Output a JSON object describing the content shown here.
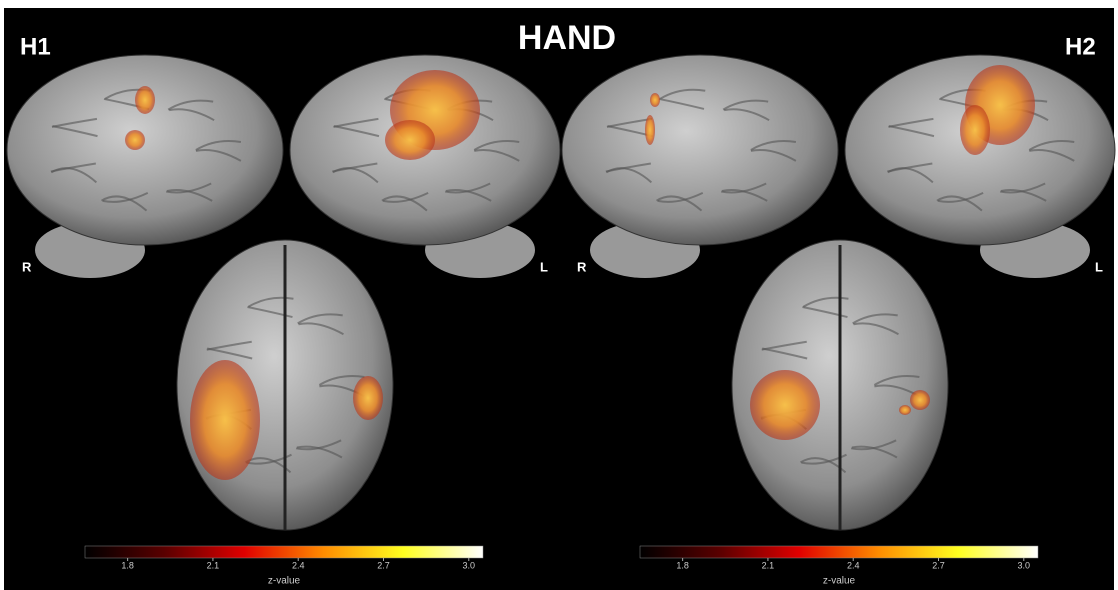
{
  "title": "HAND",
  "panels": [
    {
      "label": "H1",
      "left_label": "R",
      "right_label": "L",
      "colorbar": {
        "label": "z-value",
        "range": [
          1.65,
          3.05
        ],
        "ticks": [
          1.8,
          2.1,
          2.4,
          2.7,
          {
            "value": 3,
            "label": "3.0"
          }
        ]
      }
    },
    {
      "label": "H2",
      "left_label": "R",
      "right_label": "L",
      "colorbar": {
        "label": "z-value",
        "range": [
          1.65,
          3.05
        ],
        "ticks": [
          1.8,
          2.1,
          2.4,
          2.7,
          {
            "value": 3,
            "label": "3.0"
          }
        ]
      }
    }
  ]
}
